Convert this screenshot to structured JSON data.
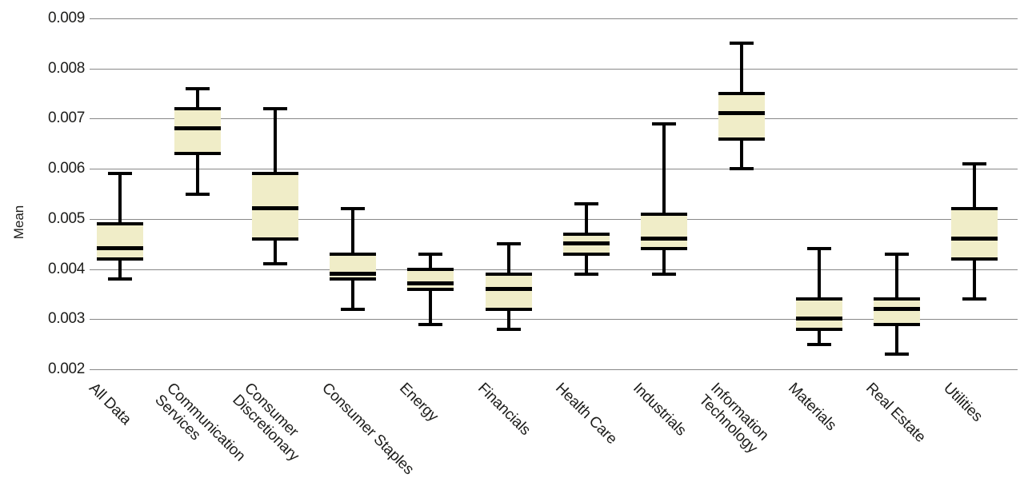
{
  "colors": {
    "box_fill": "#f0edc8",
    "line": "#000000",
    "gridline": "#888888",
    "text": "#1d1d1b",
    "background": "#ffffff"
  },
  "chart_data": {
    "type": "boxplot",
    "title": "",
    "xlabel": "",
    "ylabel": "Mean",
    "ylim": [
      0.002,
      0.009
    ],
    "grid": "horizontal",
    "legend": "none",
    "y_ticks": [
      {
        "value": 0.009,
        "label": "0.009"
      },
      {
        "value": 0.008,
        "label": "0.008"
      },
      {
        "value": 0.007,
        "label": "0.007"
      },
      {
        "value": 0.006,
        "label": "0.006"
      },
      {
        "value": 0.005,
        "label": "0.005"
      },
      {
        "value": 0.004,
        "label": "0.004"
      },
      {
        "value": 0.003,
        "label": "0.003"
      },
      {
        "value": 0.002,
        "label": "0.002"
      }
    ],
    "categories": [
      "All Data",
      "Communication Services",
      "Consumer Discretionary",
      "Consumer Staples",
      "Energy",
      "Financials",
      "Health Care",
      "Industrials",
      "Information Technology",
      "Materials",
      "Real Estate",
      "Utilities"
    ],
    "boxes": [
      {
        "category": "All Data",
        "label": "All Data",
        "whisker_low": 0.0038,
        "q1": 0.0042,
        "median": 0.0044,
        "q3": 0.0049,
        "whisker_high": 0.0059
      },
      {
        "category": "Communication Services",
        "label": "Communication\nServices",
        "whisker_low": 0.0055,
        "q1": 0.0063,
        "median": 0.0068,
        "q3": 0.0072,
        "whisker_high": 0.0076
      },
      {
        "category": "Consumer Discretionary",
        "label": "Consumer\nDiscretionary",
        "whisker_low": 0.0041,
        "q1": 0.0046,
        "median": 0.0052,
        "q3": 0.0059,
        "whisker_high": 0.0072
      },
      {
        "category": "Consumer Staples",
        "label": "Consumer Staples",
        "whisker_low": 0.0032,
        "q1": 0.0038,
        "median": 0.0039,
        "q3": 0.0043,
        "whisker_high": 0.0052
      },
      {
        "category": "Energy",
        "label": "Energy",
        "whisker_low": 0.0029,
        "q1": 0.0036,
        "median": 0.0037,
        "q3": 0.004,
        "whisker_high": 0.0043
      },
      {
        "category": "Financials",
        "label": "Financials",
        "whisker_low": 0.0028,
        "q1": 0.0032,
        "median": 0.0036,
        "q3": 0.0039,
        "whisker_high": 0.0045
      },
      {
        "category": "Health Care",
        "label": "Health Care",
        "whisker_low": 0.0039,
        "q1": 0.0043,
        "median": 0.0045,
        "q3": 0.0047,
        "whisker_high": 0.0053
      },
      {
        "category": "Industrials",
        "label": "Industrials",
        "whisker_low": 0.0039,
        "q1": 0.0044,
        "median": 0.0046,
        "q3": 0.0051,
        "whisker_high": 0.0069
      },
      {
        "category": "Information Technology",
        "label": "Information\nTechnology",
        "whisker_low": 0.006,
        "q1": 0.0066,
        "median": 0.0071,
        "q3": 0.0075,
        "whisker_high": 0.0085
      },
      {
        "category": "Materials",
        "label": "Materials",
        "whisker_low": 0.0025,
        "q1": 0.0028,
        "median": 0.003,
        "q3": 0.0034,
        "whisker_high": 0.0044
      },
      {
        "category": "Real Estate",
        "label": "Real Estate",
        "whisker_low": 0.0023,
        "q1": 0.0029,
        "median": 0.0032,
        "q3": 0.0034,
        "whisker_high": 0.0043
      },
      {
        "category": "Utilities",
        "label": "Utilities",
        "whisker_low": 0.0034,
        "q1": 0.0042,
        "median": 0.0046,
        "q3": 0.0052,
        "whisker_high": 0.0061
      }
    ]
  }
}
